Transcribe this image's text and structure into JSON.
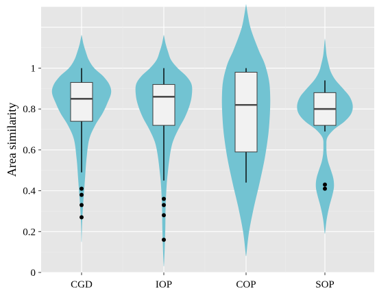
{
  "chart_data": {
    "type": "violin",
    "title": "",
    "xlabel": "",
    "ylabel": "Area similarity",
    "ylim": [
      0,
      1.3
    ],
    "yticks": [
      0,
      0.2,
      0.4,
      0.6,
      0.8,
      1
    ],
    "ytick_labels": [
      "0",
      "0.2",
      "0.4",
      "0.6",
      "0.8",
      "1"
    ],
    "categories": [
      "CGD",
      "IOP",
      "COP",
      "SOP"
    ],
    "grid": true,
    "legend": "none",
    "colors": {
      "violin_fill": "#72c3d2",
      "box_fill": "#f2f2f2",
      "panel_bg": "#e6e6e6",
      "grid_major": "#ffffff",
      "grid_minor": "#efefef"
    },
    "series": [
      {
        "category": "CGD",
        "box": {
          "whisker_low": 0.49,
          "q1": 0.74,
          "median": 0.85,
          "q3": 0.93,
          "whisker_high": 1.0
        },
        "outliers": [
          0.41,
          0.38,
          0.33,
          0.27
        ],
        "violin": {
          "y": [
            0.15,
            0.25,
            0.35,
            0.45,
            0.55,
            0.65,
            0.72,
            0.78,
            0.83,
            0.88,
            0.92,
            0.96,
            1.0,
            1.04,
            1.08,
            1.12,
            1.16
          ],
          "w": [
            0.005,
            0.02,
            0.06,
            0.11,
            0.16,
            0.25,
            0.45,
            0.7,
            0.86,
            0.98,
            0.92,
            0.72,
            0.42,
            0.24,
            0.14,
            0.06,
            0.005
          ]
        }
      },
      {
        "category": "IOP",
        "box": {
          "whisker_low": 0.45,
          "q1": 0.72,
          "median": 0.86,
          "q3": 0.92,
          "whisker_high": 1.0
        },
        "outliers": [
          0.36,
          0.33,
          0.28,
          0.16
        ],
        "violin": {
          "y": [
            0.03,
            0.12,
            0.22,
            0.32,
            0.42,
            0.5,
            0.58,
            0.64,
            0.7,
            0.76,
            0.82,
            0.87,
            0.92,
            0.96,
            1.0,
            1.04,
            1.08,
            1.12,
            1.16
          ],
          "w": [
            0.005,
            0.03,
            0.05,
            0.06,
            0.09,
            0.14,
            0.21,
            0.3,
            0.48,
            0.7,
            0.86,
            0.93,
            0.92,
            0.75,
            0.46,
            0.24,
            0.14,
            0.06,
            0.005
          ]
        }
      },
      {
        "category": "COP",
        "box": {
          "whisker_low": 0.44,
          "q1": 0.59,
          "median": 0.82,
          "q3": 0.98,
          "whisker_high": 1.0
        },
        "outliers": [],
        "violin": {
          "y": [
            0.08,
            0.2,
            0.32,
            0.44,
            0.56,
            0.68,
            0.78,
            0.86,
            0.94,
            1.02,
            1.08,
            1.14,
            1.2,
            1.26,
            1.31
          ],
          "w": [
            0.005,
            0.1,
            0.26,
            0.45,
            0.62,
            0.74,
            0.79,
            0.8,
            0.76,
            0.62,
            0.44,
            0.28,
            0.14,
            0.06,
            0.005
          ]
        }
      },
      {
        "category": "SOP",
        "box": {
          "whisker_low": 0.69,
          "q1": 0.72,
          "median": 0.8,
          "q3": 0.88,
          "whisker_high": 0.94
        },
        "outliers": [
          0.43,
          0.41
        ],
        "violin": {
          "y": [
            0.19,
            0.26,
            0.32,
            0.38,
            0.42,
            0.46,
            0.5,
            0.54,
            0.58,
            0.62,
            0.66,
            0.7,
            0.74,
            0.78,
            0.82,
            0.86,
            0.9,
            0.94,
            0.98,
            1.02,
            1.06,
            1.1,
            1.14
          ],
          "w": [
            0.005,
            0.06,
            0.14,
            0.25,
            0.3,
            0.28,
            0.2,
            0.11,
            0.06,
            0.05,
            0.08,
            0.3,
            0.66,
            0.88,
            0.92,
            0.82,
            0.6,
            0.36,
            0.2,
            0.12,
            0.06,
            0.03,
            0.005
          ]
        }
      }
    ]
  }
}
